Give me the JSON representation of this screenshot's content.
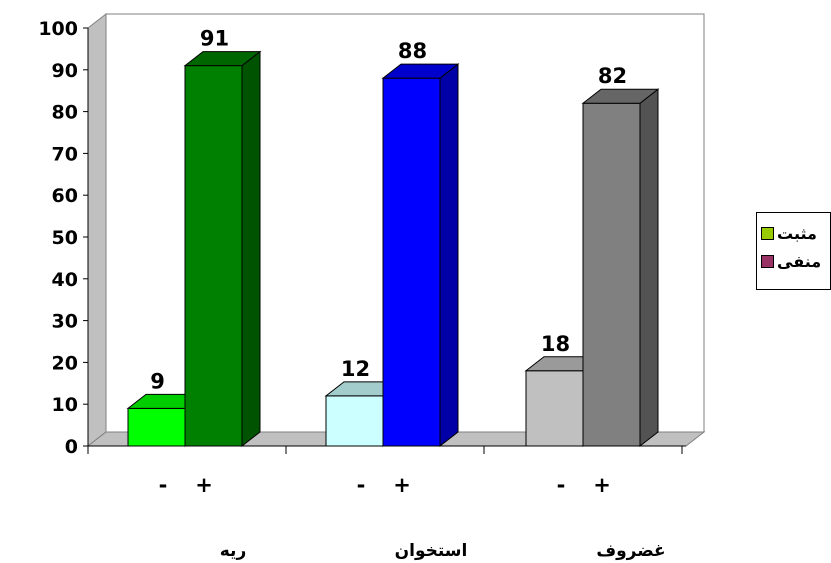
{
  "chart_data": {
    "type": "bar",
    "title": "",
    "xlabel": "",
    "ylabel": "",
    "ylim": [
      0,
      100
    ],
    "yticks": [
      "0",
      "10",
      "20",
      "30",
      "40",
      "50",
      "60",
      "70",
      "80",
      "90",
      "100"
    ],
    "groups": [
      {
        "name": "ریه",
        "bars": [
          {
            "sign": "-",
            "value": 9,
            "label": "9",
            "color": "#00ff00"
          },
          {
            "sign": "+",
            "value": 91,
            "label": "91",
            "color": "#008000"
          }
        ]
      },
      {
        "name": "استخوان",
        "bars": [
          {
            "sign": "-",
            "value": 12,
            "label": "12",
            "color": "#ccffff"
          },
          {
            "sign": "+",
            "value": 88,
            "label": "88",
            "color": "#0000ff"
          }
        ]
      },
      {
        "name": "غضروف",
        "bars": [
          {
            "sign": "-",
            "value": 18,
            "label": "18",
            "color": "#c0c0c0"
          },
          {
            "sign": "+",
            "value": 82,
            "label": "82",
            "color": "#808080"
          }
        ]
      }
    ],
    "legend": {
      "position": "right",
      "entries": [
        {
          "label": "مثبت",
          "color": "#99cc00"
        },
        {
          "label": "منفی",
          "color": "#993366"
        }
      ]
    },
    "grid": false,
    "wall_color": "#c0c0c0"
  }
}
